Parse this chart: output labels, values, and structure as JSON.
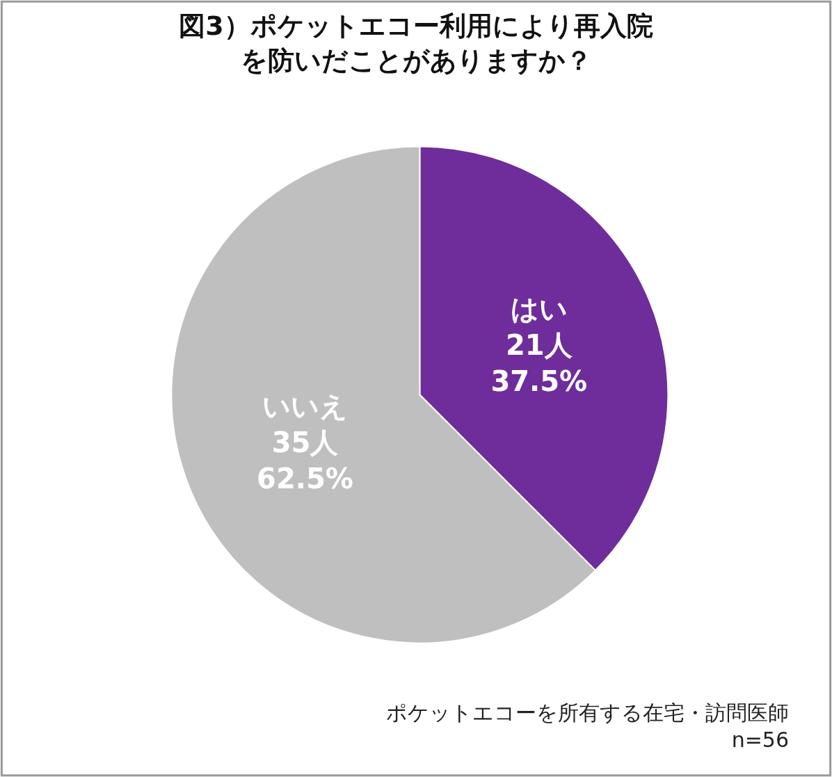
{
  "chart_data": {
    "type": "pie",
    "title": "図3）ポケットエコー利用により再入院を防いだことがありますか？",
    "categories": [
      "はい",
      "いいえ"
    ],
    "values": [
      21,
      35
    ],
    "value_labels": [
      "21人\n37.5%",
      "35人\n62.5%"
    ],
    "colors": [
      "#6f2d9c",
      "#bfbfbf"
    ],
    "annotations": [
      "ポケットエコーを所有する在宅・訪問医師\nn=56"
    ],
    "legend": false
  }
}
